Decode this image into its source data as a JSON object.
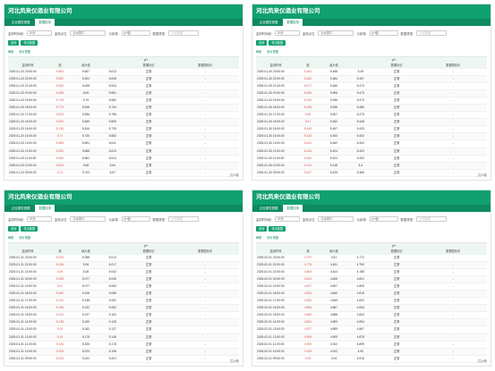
{
  "company": "河北凤来仪酒业有限公司",
  "tabs": [
    "企业属性视图",
    "数据检测"
  ],
  "filters": {
    "label1": "监测时间段:",
    "value1": "30天",
    "label2": "监测点位:",
    "value2": "污水排口",
    "label3": "污染物:",
    "value3": "pH值",
    "label4": "数据类型:",
    "value4": "小时数据"
  },
  "buttons": {
    "query": "查询",
    "export": "导出数据"
  },
  "actions": {
    "refresh": "刷新",
    "chart": "统计视图"
  },
  "columns": {
    "time": "监测时间",
    "group": "pH",
    "c1": "值",
    "c2": "最大值",
    "c3": "数据标记",
    "c4": "数据值标识"
  },
  "panels": [
    {
      "pager": "共15条",
      "rows": [
        [
          "2025-01-20 23:00:00",
          "5.661",
          "5.667",
          "5.613",
          "正常",
          "-"
        ],
        [
          "2025-01-20 22:00:00",
          "5.687",
          "5.522",
          "5.648",
          "正常",
          "-"
        ],
        [
          "2025-01-20 21:00:00",
          "5.592",
          "5.628",
          "5.534",
          "正常",
          "-"
        ],
        [
          "2025-01-20 20:00:00",
          "5.638",
          "5.69",
          "5.581",
          "正常",
          "-"
        ],
        [
          "2025-01-20 19:00:00",
          "5.729",
          "5.76",
          "5.682",
          "正常",
          "-"
        ],
        [
          "2025-01-20 18:00:00",
          "5.779",
          "5.818",
          "5.734",
          "正常",
          "-"
        ],
        [
          "2025-01-20 17:00:00",
          "5.814",
          "5.836",
          "5.796",
          "正常",
          "-"
        ],
        [
          "2025-01-20 16:00:00",
          "5.822",
          "5.849",
          "5.806",
          "正常",
          "-"
        ],
        [
          "2025-01-20 15:00:00",
          "5.784",
          "5.816",
          "5.735",
          "正常",
          "-"
        ],
        [
          "2025-01-20 14:00:00",
          "5.71",
          "5.735",
          "5.683",
          "正常",
          "-"
        ],
        [
          "2025-01-20 13:00:00",
          "5.653",
          "5.691",
          "5.611",
          "正常",
          "-"
        ],
        [
          "2025-01-20 12:00:00",
          "5.631",
          "5.655",
          "5.613",
          "正常",
          "-"
        ],
        [
          "2025-01-20 11:00:00",
          "5.640",
          "5.661",
          "5.614",
          "正常",
          "-"
        ],
        [
          "2025-01-20 10:00:00",
          "5.621",
          "5.68",
          "5.64",
          "正常",
          "-"
        ],
        [
          "2025-01-20 09:00:00",
          "5.71",
          "5.702",
          "5.67",
          "正常",
          "-"
        ]
      ]
    },
    {
      "pager": "共15条",
      "rows": [
        [
          "2025-01-30 23:00:00",
          "5.462",
          "5.468",
          "5.45",
          "正常",
          "-"
        ],
        [
          "2025-01-30 22:00:00",
          "5.462",
          "5.484",
          "5.467",
          "正常",
          "-"
        ],
        [
          "2025-01-30 21:00:00",
          "5.477",
          "5.466",
          "5.473",
          "正常",
          "-"
        ],
        [
          "2025-01-30 20:00:00",
          "5.483",
          "5.506",
          "5.473",
          "正常",
          "-"
        ],
        [
          "2025-01-30 19:00:00",
          "5.493",
          "5.536",
          "5.473",
          "正常",
          "-"
        ],
        [
          "2025-01-30 18:00:00",
          "5.495",
          "5.538",
          "5.486",
          "正常",
          "-"
        ],
        [
          "2025-01-30 17:00:00",
          "5.46",
          "5.507",
          "5.473",
          "正常",
          "-"
        ],
        [
          "2025-01-30 16:00:00",
          "5.47",
          "5.462",
          "5.448",
          "正常",
          "-"
        ],
        [
          "2025-01-30 15:00:00",
          "5.445",
          "5.467",
          "5.433",
          "正常",
          "-"
        ],
        [
          "2025-01-30 14:00:00",
          "5.423",
          "5.453",
          "5.402",
          "正常",
          "-"
        ],
        [
          "2025-01-30 13:00:00",
          "5.421",
          "5.462",
          "5.402",
          "正常",
          "-"
        ],
        [
          "2025-01-30 12:00:00",
          "5.416",
          "5.424",
          "5.403",
          "正常",
          "-"
        ],
        [
          "2025-01-30 11:00:00",
          "5.402",
          "5.424",
          "5.402",
          "正常",
          "-"
        ],
        [
          "2025-01-30 10:00:00",
          "5.412",
          "5.418",
          "5.4",
          "正常",
          "-"
        ],
        [
          "2025-01-30 09:00:00",
          "5.407",
          "5.425",
          "5.366",
          "正常",
          "-"
        ]
      ]
    },
    {
      "pager": "共15条",
      "rows": [
        [
          "2025-01-31 23:00:00",
          "5.023",
          "5.058",
          "5.014",
          "正常",
          "-"
        ],
        [
          "2025-01-31 22:00:00",
          "5.026",
          "5.06",
          "5.017",
          "正常",
          "-"
        ],
        [
          "2025-01-31 21:00:00",
          "5.05",
          "5.08",
          "5.042",
          "正常",
          "-"
        ],
        [
          "2025-01-31 20:00:00",
          "5.063",
          "5.077",
          "5.045",
          "正常",
          "-"
        ],
        [
          "2025-01-31 19:00:00",
          "5.07",
          "5.077",
          "5.063",
          "正常",
          "-"
        ],
        [
          "2025-01-31 18:00:00",
          "5.082",
          "5.106",
          "5.065",
          "正常",
          "-"
        ],
        [
          "2025-01-31 17:00:00",
          "5.102",
          "5.138",
          "5.082",
          "正常",
          "-"
        ],
        [
          "2025-01-31 16:00:00",
          "5.155",
          "5.132",
          "5.082",
          "正常",
          "-"
        ],
        [
          "2025-01-31 15:00:00",
          "5.112",
          "5.137",
          "5.102",
          "正常",
          "-"
        ],
        [
          "2025-01-31 14:00:00",
          "5.128",
          "5.150",
          "5.126",
          "正常",
          "-"
        ],
        [
          "2025-01-31 13:00:00",
          "5.15",
          "5.162",
          "5.137",
          "正常",
          "-"
        ],
        [
          "2025-01-31 12:00:00",
          "5.16",
          "5.178",
          "5.148",
          "正常",
          "-"
        ],
        [
          "2025-01-31 11:00:00",
          "5.184",
          "5.205",
          "5.178",
          "正常",
          "-"
        ],
        [
          "2025-01-31 10:00:00",
          "5.203",
          "5.223",
          "5.198",
          "正常",
          "-"
        ],
        [
          "2025-01-31 09:00:00",
          "5.224",
          "5.241",
          "5.201",
          "正常",
          "-"
        ]
      ]
    },
    {
      "pager": "共15条",
      "rows": [
        [
          "2025-02-01 23:00:00",
          "4.797",
          "4.81",
          "4.772",
          "正常",
          "-"
        ],
        [
          "2025-02-01 22:00:00",
          "4.776",
          "4.811",
          "4.750",
          "正常",
          "-"
        ],
        [
          "2025-02-01 21:00:00",
          "4.802",
          "4.814",
          "4.788",
          "正常",
          "-"
        ],
        [
          "2025-02-01 20:00:00",
          "4.814",
          "4.828",
          "4.801",
          "正常",
          "-"
        ],
        [
          "2025-02-01 19:00:00",
          "4.817",
          "4.827",
          "4.805",
          "正常",
          "-"
        ],
        [
          "2025-02-01 18:00:00",
          "4.824",
          "4.840",
          "4.815",
          "正常",
          "-"
        ],
        [
          "2025-02-01 17:00:00",
          "4.832",
          "4.849",
          "4.822",
          "正常",
          "-"
        ],
        [
          "2025-02-01 16:00:00",
          "4.846",
          "4.867",
          "4.834",
          "正常",
          "-"
        ],
        [
          "2025-02-01 15:00:00",
          "4.852",
          "4.868",
          "4.844",
          "正常",
          "-"
        ],
        [
          "2025-02-01 14:00:00",
          "4.861",
          "4.893",
          "4.854",
          "正常",
          "-"
        ],
        [
          "2025-02-01 13:00:00",
          "4.877",
          "4.899",
          "4.867",
          "正常",
          "-"
        ],
        [
          "2025-02-01 12:00:00",
          "4.894",
          "4.909",
          "4.878",
          "正常",
          "-"
        ],
        [
          "2025-02-01 11:00:00",
          "4.909",
          "4.912",
          "4.899",
          "正常",
          "-"
        ],
        [
          "2025-02-01 10:00:00",
          "4.919",
          "4.912",
          "4.90",
          "正常",
          "-"
        ],
        [
          "2025-02-01 09:00:00",
          "4.93",
          "4.94",
          "4.916",
          "正常",
          "-"
        ]
      ]
    }
  ]
}
